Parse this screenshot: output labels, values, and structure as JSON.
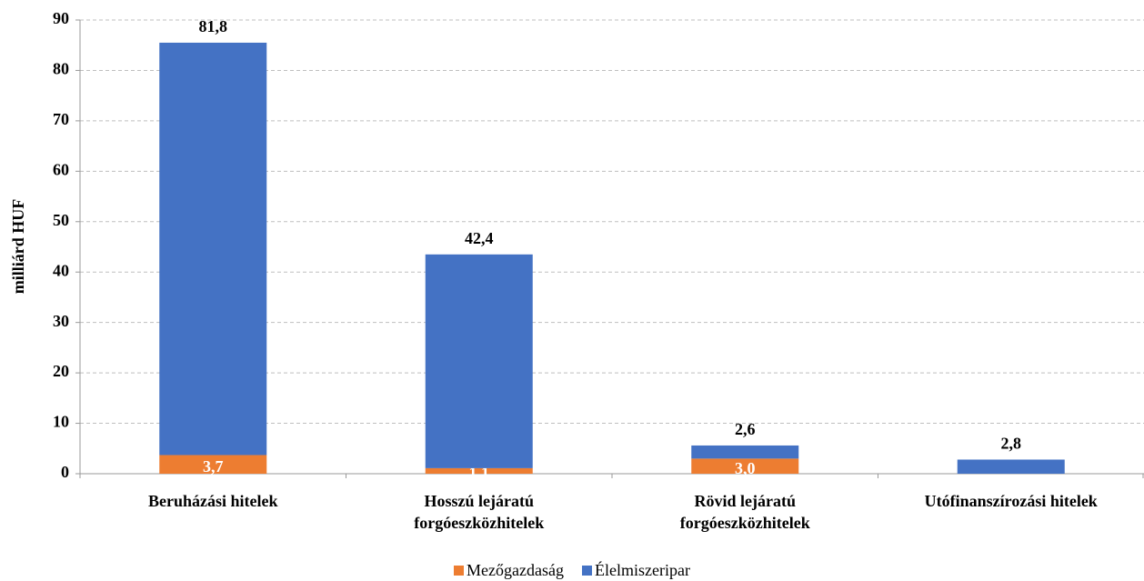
{
  "chart_data": {
    "type": "stacked-bar",
    "y_label": "milliárd HUF",
    "categories": [
      "Beruházási hitelek",
      "Hosszú lejáratú forgóeszközhitelek",
      "Rövid lejáratú forgóeszközhitelek",
      "Utófinanszírozási hitelek"
    ],
    "series": [
      {
        "name": "Mezőgazdaság",
        "color": "#ed7d31",
        "values": [
          3.7,
          1.1,
          3.0,
          null
        ],
        "value_labels": [
          "3,7",
          "1,1",
          "3,0",
          null
        ]
      },
      {
        "name": "Élelmiszeripar",
        "color": "#4472c4",
        "values": [
          81.8,
          42.4,
          2.6,
          2.8
        ],
        "value_labels": [
          "81,8",
          "42,4",
          "2,6",
          "2,8"
        ]
      }
    ],
    "ylim": [
      0,
      90
    ],
    "yticks": [
      0,
      10,
      20,
      30,
      40,
      50,
      60,
      70,
      80,
      90
    ],
    "grid": true,
    "legend": "bottom"
  }
}
